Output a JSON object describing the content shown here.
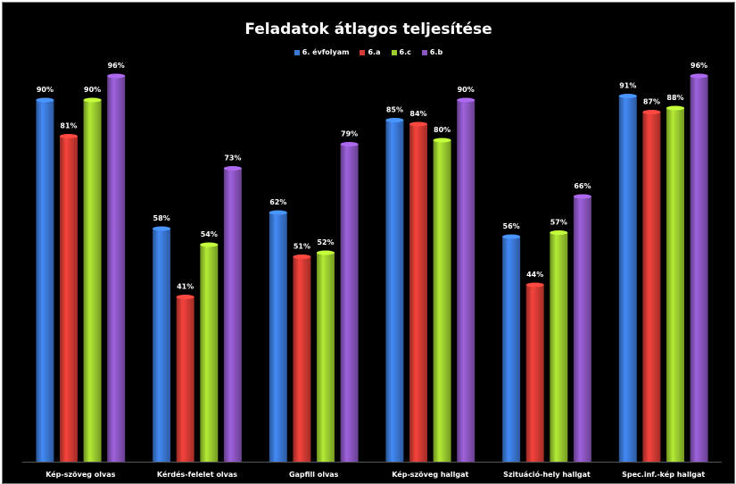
{
  "chart_data": {
    "type": "bar",
    "title": "Feladatok átlagos teljesítése",
    "categories": [
      "Kép-szöveg olvas",
      "Kérdés-felelet olvas",
      "Gapfill olvas",
      "Kép-szöveg hallgat",
      "Szituáció-hely hallgat",
      "Spec.inf.-kép hallgat"
    ],
    "series": [
      {
        "name": "6. évfolyam",
        "color": "#3a78d6",
        "values": [
          90,
          58,
          62,
          85,
          56,
          91
        ]
      },
      {
        "name": "6.a",
        "color": "#d63a34",
        "values": [
          81,
          41,
          51,
          84,
          44,
          87
        ]
      },
      {
        "name": "6.c",
        "color": "#9ccc2e",
        "values": [
          90,
          54,
          52,
          80,
          57,
          88
        ]
      },
      {
        "name": "6.b",
        "color": "#8a55c0",
        "values": [
          96,
          73,
          79,
          90,
          66,
          96
        ]
      }
    ],
    "value_suffix": "%",
    "ylim": [
      0,
      100
    ],
    "legend_position": "top-center",
    "grid": false,
    "xlabel": "",
    "ylabel": ""
  }
}
